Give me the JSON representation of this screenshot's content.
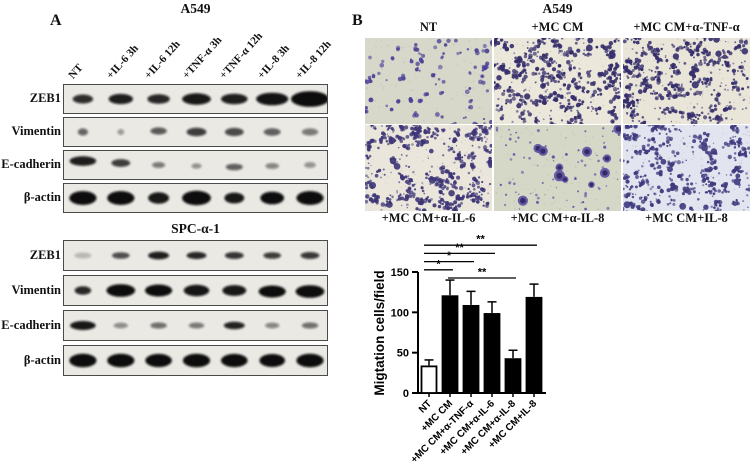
{
  "panel_a": {
    "label": "A",
    "lane_labels": [
      "NT",
      "+IL-6 3h",
      "+IL-6 12h",
      "+TNF-α 3h",
      "+TNF-α 12h",
      "+IL-8 3h",
      "+IL-8 12h"
    ],
    "groups": [
      {
        "title": "A549",
        "rows": [
          {
            "protein": "ZEB1",
            "bands": [
              [
                0.6,
                0.85,
                0.75,
                0
              ],
              [
                0.72,
                0.92,
                0.85,
                0
              ],
              [
                0.66,
                0.88,
                0.8,
                0
              ],
              [
                0.85,
                0.95,
                0.95,
                0
              ],
              [
                0.78,
                0.92,
                0.88,
                0
              ],
              [
                0.95,
                0.97,
                1.05,
                0
              ],
              [
                1.12,
                1.0,
                1.3,
                0
              ]
            ]
          },
          {
            "protein": "Vimentin",
            "bands": [
              [
                0.3,
                0.6,
                0.6,
                0
              ],
              [
                0.2,
                0.35,
                0.5,
                0
              ],
              [
                0.48,
                0.65,
                0.6,
                -1
              ],
              [
                0.58,
                0.78,
                0.7,
                0
              ],
              [
                0.55,
                0.72,
                0.68,
                0
              ],
              [
                0.5,
                0.62,
                0.62,
                0
              ],
              [
                0.48,
                0.5,
                0.6,
                0
              ]
            ]
          },
          {
            "protein": "E-cadherin",
            "bands": [
              [
                0.78,
                0.92,
                0.8,
                -4
              ],
              [
                0.55,
                0.78,
                0.65,
                -2
              ],
              [
                0.38,
                0.5,
                0.5,
                0
              ],
              [
                0.3,
                0.4,
                0.45,
                1
              ],
              [
                0.5,
                0.62,
                0.55,
                2
              ],
              [
                0.4,
                0.45,
                0.5,
                1
              ],
              [
                0.34,
                0.38,
                0.5,
                0
              ]
            ]
          },
          {
            "protein": "β-actin",
            "bands": [
              [
                0.8,
                1.0,
                1.15,
                0
              ],
              [
                0.8,
                1.0,
                1.15,
                0
              ],
              [
                0.62,
                0.95,
                0.95,
                0
              ],
              [
                0.85,
                1.0,
                1.2,
                0
              ],
              [
                0.58,
                0.95,
                0.9,
                0
              ],
              [
                0.7,
                1.0,
                1.05,
                0
              ],
              [
                0.8,
                1.0,
                1.15,
                0
              ]
            ]
          }
        ]
      },
      {
        "title": "SPC-α-1",
        "rows": [
          {
            "protein": "ZEB1",
            "bands": [
              [
                0.5,
                0.22,
                0.5,
                0
              ],
              [
                0.52,
                0.7,
                0.55,
                0
              ],
              [
                0.62,
                0.92,
                0.65,
                0
              ],
              [
                0.58,
                0.88,
                0.6,
                0
              ],
              [
                0.55,
                0.82,
                0.58,
                0
              ],
              [
                0.52,
                0.78,
                0.55,
                0
              ],
              [
                0.55,
                0.8,
                0.58,
                0
              ]
            ]
          },
          {
            "protein": "Vimentin",
            "bands": [
              [
                0.48,
                0.88,
                0.7,
                0
              ],
              [
                0.85,
                1.0,
                1.05,
                0
              ],
              [
                0.8,
                1.0,
                1.0,
                0
              ],
              [
                0.75,
                0.96,
                0.95,
                0
              ],
              [
                0.7,
                0.95,
                0.9,
                0
              ],
              [
                0.8,
                1.0,
                1.0,
                1
              ],
              [
                0.85,
                1.0,
                1.05,
                1
              ]
            ]
          },
          {
            "protein": "E-cadherin",
            "bands": [
              [
                0.75,
                0.95,
                0.75,
                0
              ],
              [
                0.42,
                0.42,
                0.48,
                0
              ],
              [
                0.48,
                0.55,
                0.52,
                0
              ],
              [
                0.45,
                0.5,
                0.5,
                0
              ],
              [
                0.62,
                0.9,
                0.62,
                0
              ],
              [
                0.42,
                0.45,
                0.48,
                0
              ],
              [
                0.48,
                0.55,
                0.52,
                0
              ]
            ]
          },
          {
            "protein": "β-actin",
            "bands": [
              [
                0.8,
                1.0,
                1.12,
                0
              ],
              [
                0.8,
                1.0,
                1.12,
                0
              ],
              [
                0.78,
                1.0,
                1.1,
                0
              ],
              [
                0.8,
                1.0,
                1.12,
                0
              ],
              [
                0.78,
                1.0,
                1.1,
                0
              ],
              [
                0.75,
                1.0,
                1.08,
                0
              ],
              [
                0.8,
                1.0,
                1.12,
                0
              ]
            ]
          }
        ]
      }
    ]
  },
  "panel_b": {
    "label": "B",
    "title": "A549",
    "micrographs": [
      {
        "label": "NT",
        "bg": "#d7d8ca",
        "dot": "#4a3f96",
        "style": "sparse"
      },
      {
        "label": "+MC CM",
        "bg": "#ebe7db",
        "dot": "#352e6b",
        "style": "dense"
      },
      {
        "label": "+MC CM+α-TNF-α",
        "bg": "#e9e5d9",
        "dot": "#352e6b",
        "style": "dense"
      },
      {
        "label": "+MC CM+α-IL-6",
        "bg": "#eae6dc",
        "dot": "#3d3576",
        "style": "dense"
      },
      {
        "label": "+MC CM+α-IL-8",
        "bg": "#d5d7c7",
        "dot": "#5348a0",
        "style": "sparse-blobs"
      },
      {
        "label": "+MC CM+IL-8",
        "bg": "#e2e4ef",
        "dot": "#3f3a7e",
        "style": "dense-blue"
      }
    ]
  },
  "chart_data": {
    "type": "bar",
    "ylabel": "Migtation cells/field",
    "categories": [
      "NT",
      "+MC CM",
      "+MC CM+α-TNF-α",
      "+MC CM+α-IL-6",
      "+MC CM+α-IL-8",
      "+MC CM+IL-8"
    ],
    "values": [
      33,
      120,
      108,
      98,
      42,
      118
    ],
    "errors": [
      8,
      20,
      18,
      15,
      11,
      17
    ],
    "bar_fill": [
      "#ffffff",
      "#000000",
      "#000000",
      "#000000",
      "#000000",
      "#000000"
    ],
    "yticks": [
      0,
      50,
      100,
      150
    ],
    "ylim": [
      0,
      150
    ],
    "grid": false,
    "significance": [
      {
        "from": "+MC CM",
        "to": "+MC CM+α-IL-8",
        "label": "**",
        "rank": 0
      },
      {
        "from": "NT",
        "to": "+MC CM",
        "label": "*",
        "rank": 1
      },
      {
        "from": "NT",
        "to": "+MC CM+α-TNF-α",
        "label": "*",
        "rank": 2
      },
      {
        "from": "NT",
        "to": "+MC CM+α-IL-6",
        "label": "**",
        "rank": 3
      },
      {
        "from": "NT",
        "to": "+MC CM+IL-8",
        "label": "**",
        "rank": 4
      }
    ]
  }
}
